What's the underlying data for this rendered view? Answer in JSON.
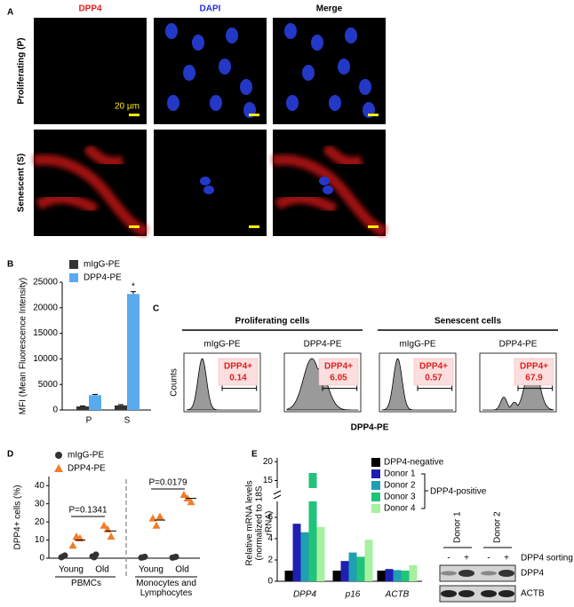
{
  "figure": {
    "panel_labels": [
      "A",
      "B",
      "C",
      "D",
      "E"
    ]
  },
  "panel_a": {
    "columns": [
      "DPP4",
      "DAPI",
      "Merge"
    ],
    "rows": [
      "Proliferating (P)",
      "Senescent (S)"
    ],
    "scale_label": "20 µm"
  },
  "panel_c": {
    "groups": [
      "Proliferating cells",
      "Senescent cells"
    ],
    "y_label": "Counts",
    "x_label": "DPP4-PE",
    "gate_label": "DPP4+",
    "plots": [
      {
        "label": "mIgG-PE",
        "value": 0.14
      },
      {
        "label": "DPP4-PE",
        "value": 6.05
      },
      {
        "label": "mIgG-PE",
        "value": 0.57
      },
      {
        "label": "DPP4-PE",
        "value": 67.9
      }
    ]
  },
  "chart_data": [
    {
      "type": "bar",
      "y_label": "MFI (Mean Fluorescence Intensity)",
      "categories": [
        "P",
        "S"
      ],
      "series": [
        {
          "name": "mIgG-PE",
          "color": "#333333",
          "values": [
            700,
            900
          ],
          "errors": [
            100,
            150
          ]
        },
        {
          "name": "DPP4-PE",
          "color": "#5aaaf0",
          "values": [
            2900,
            22700
          ],
          "errors": [
            150,
            450
          ]
        }
      ],
      "ylim": [
        0,
        25000
      ],
      "yticks": [
        0,
        5000,
        10000,
        15000,
        20000,
        25000
      ],
      "annotation": "*"
    },
    {
      "type": "scatter",
      "y_label": "DPP4+ cells (%)",
      "categories": [
        "Young",
        "Old",
        "Young",
        "Old"
      ],
      "groups": [
        "PBMCs",
        "Monocytes and Lymphocytes"
      ],
      "p_values": [
        "P=0.1341",
        "P=0.0179"
      ],
      "series": [
        {
          "name": "mIgG-PE",
          "color": "#333333",
          "marker": "circle",
          "values": [
            [
              0.5,
              1,
              1.5
            ],
            [
              1,
              0.5,
              2
            ],
            [
              0.3,
              0.5,
              0.8
            ],
            [
              0.3,
              0.5,
              0.8
            ]
          ]
        },
        {
          "name": "DPP4-PE",
          "color": "#f07d28",
          "marker": "triangle",
          "values": [
            [
              7,
              12,
              11
            ],
            [
              18,
              16,
              12
            ],
            [
              22,
              18,
              23
            ],
            [
              35,
              33,
              31
            ]
          ],
          "means": [
            10,
            15,
            21,
            33
          ]
        }
      ],
      "ylim": [
        0,
        45
      ],
      "yticks": [
        0,
        10,
        20,
        30,
        40
      ]
    },
    {
      "type": "bar",
      "y_label": "Relative mRNA levels (normalized to 18S rRNA)",
      "categories": [
        "DPP4",
        "p16",
        "ACTB"
      ],
      "series": [
        {
          "name": "DPP4-negative",
          "color": "#000000",
          "values": [
            1,
            1,
            1
          ]
        },
        {
          "name": "Donor 1",
          "color": "#1f1fb4",
          "values": [
            5.4,
            1.9,
            1.15
          ]
        },
        {
          "name": "Donor 2",
          "color": "#1f9fb4",
          "values": [
            4.6,
            2.7,
            1.05
          ]
        },
        {
          "name": "Donor 3",
          "color": "#1fc47a",
          "values": [
            17,
            2.3,
            1.0
          ]
        },
        {
          "name": "Donor 4",
          "color": "#a8f0a0",
          "values": [
            5.1,
            3.9,
            1.5
          ]
        }
      ],
      "legend_group": "DPP4-positive",
      "ylim": [
        0,
        21
      ],
      "axis_break": [
        7.5,
        13
      ],
      "yticks": [
        0,
        2,
        4,
        6,
        15,
        20
      ]
    }
  ],
  "panel_e_blot": {
    "lanes": [
      "Donor 1",
      "Donor 2"
    ],
    "signs": [
      "-",
      "+"
    ],
    "sorting_label": "DPP4 sorting",
    "bands": [
      "DPP4",
      "ACTB"
    ]
  }
}
